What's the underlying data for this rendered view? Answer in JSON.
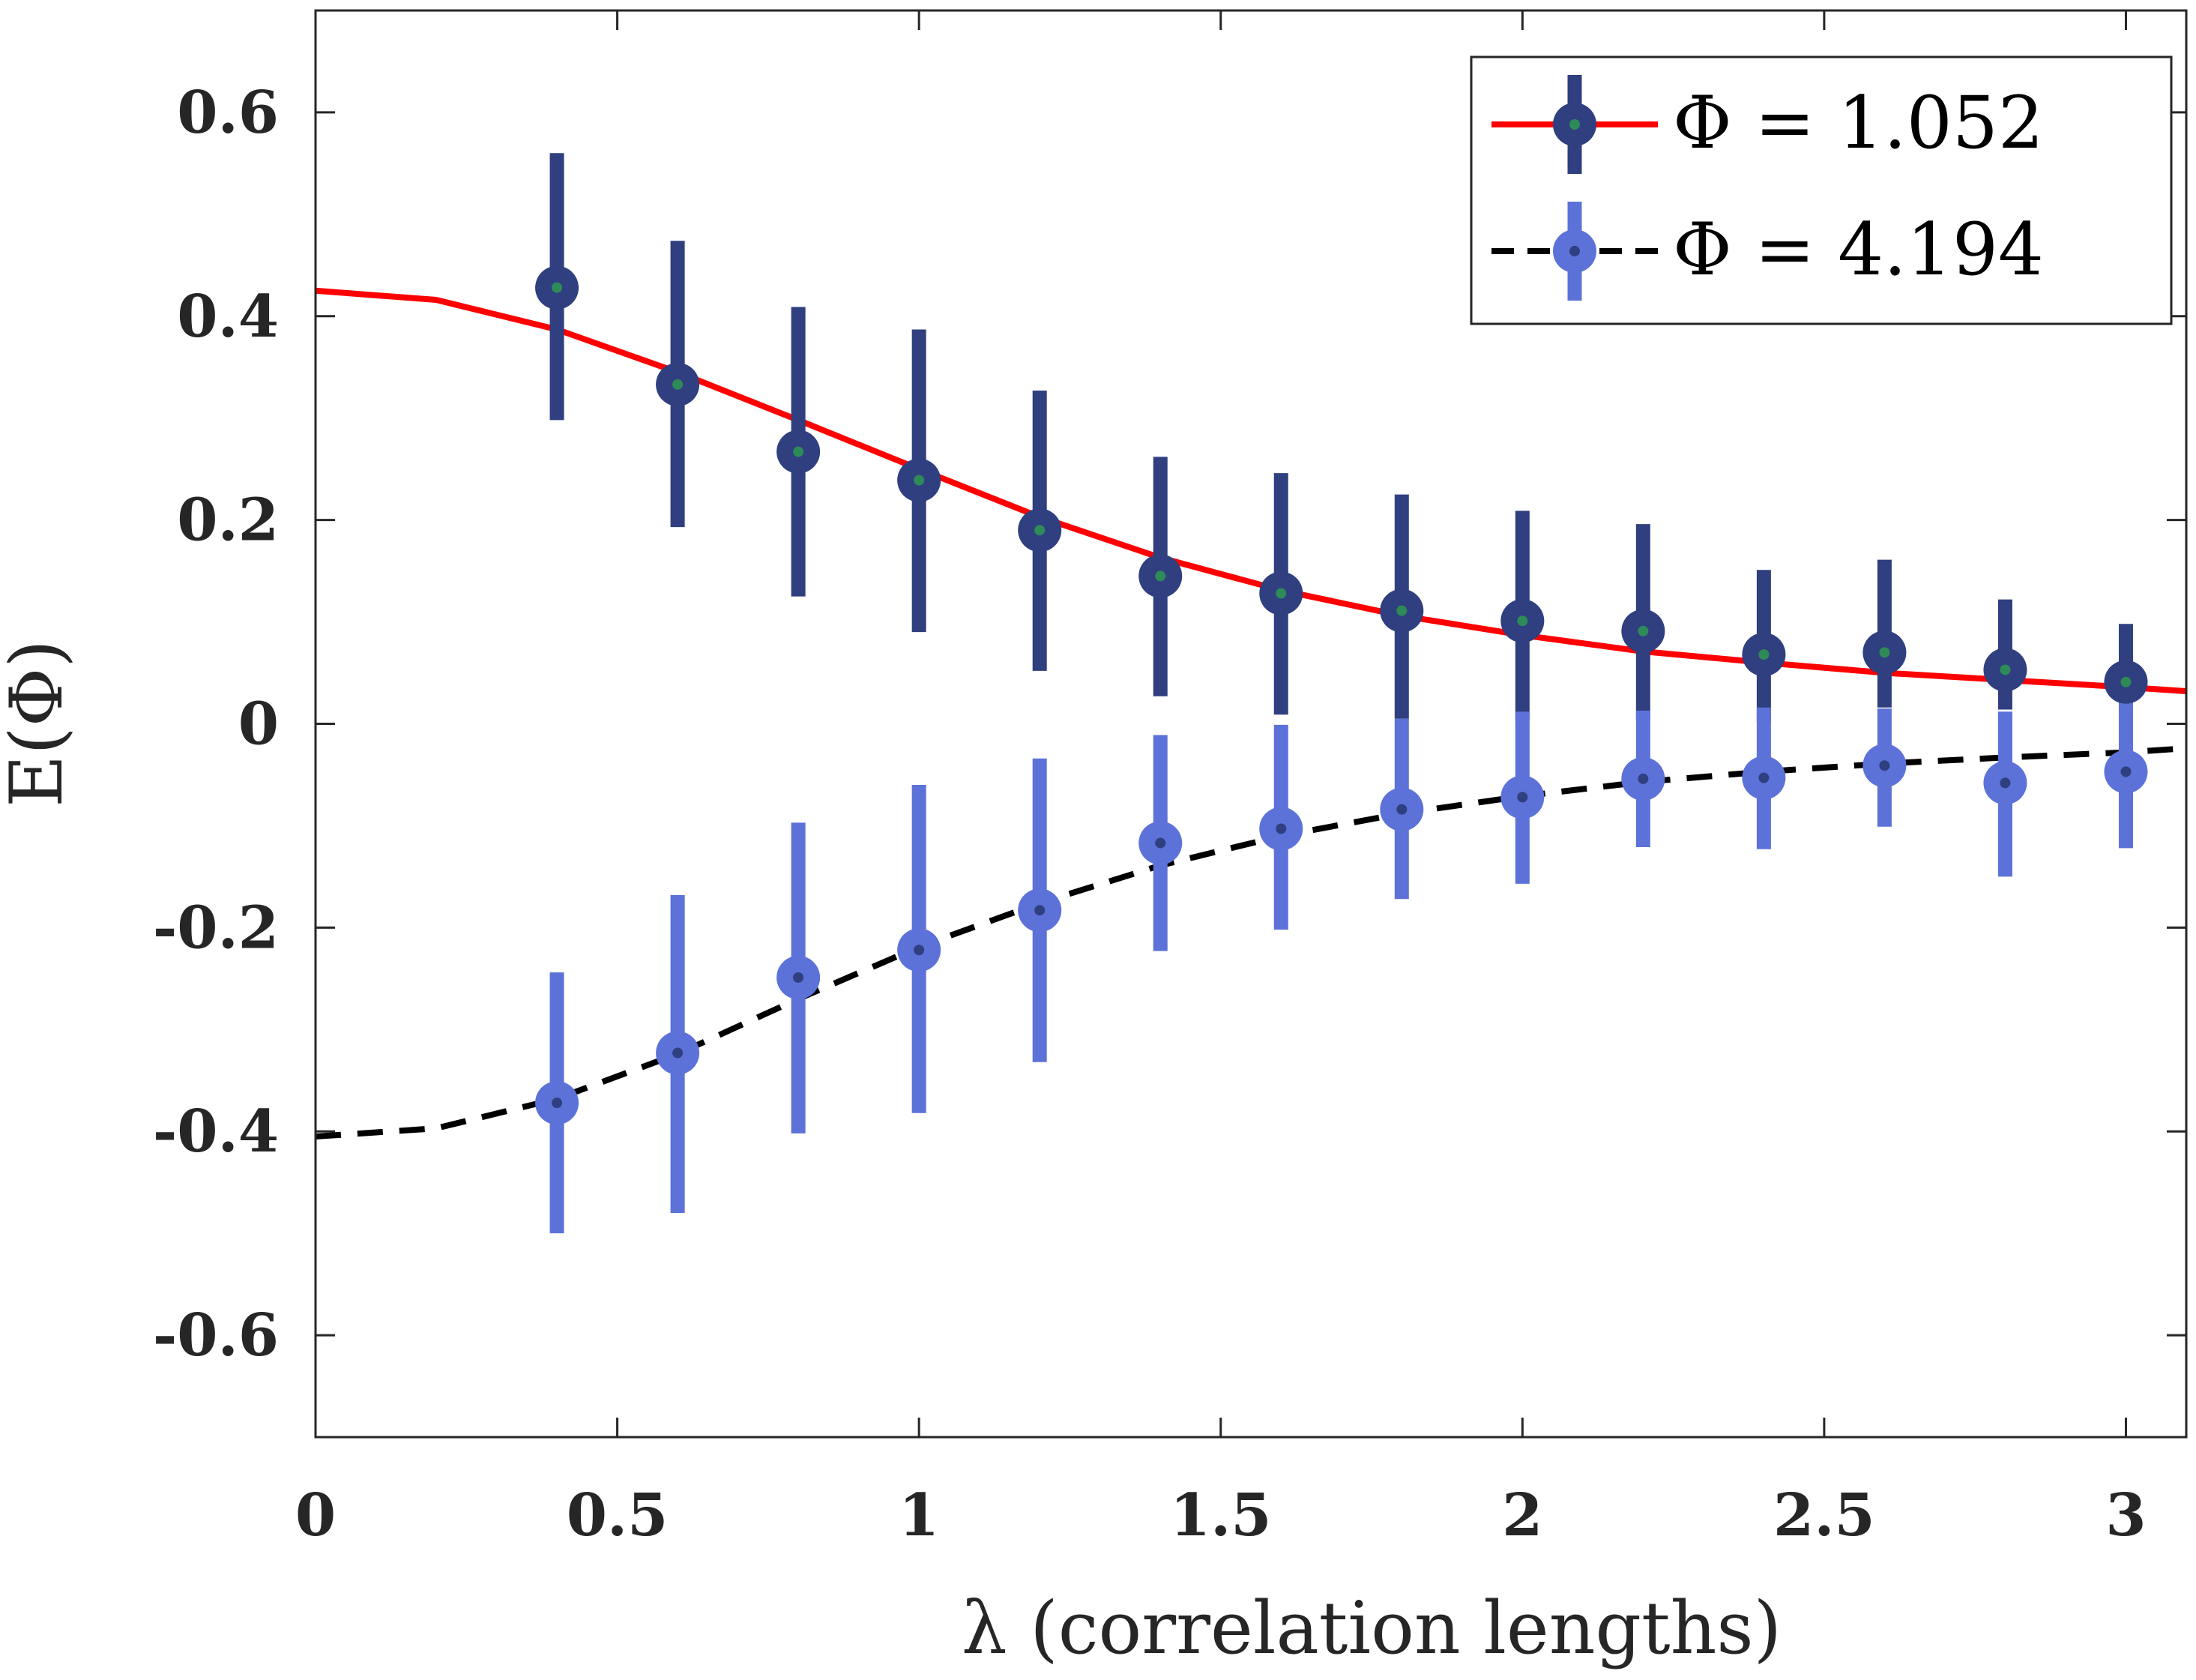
{
  "chart_data": {
    "type": "line",
    "title": "",
    "xlabel": "λ (correlation lengths)",
    "ylabel": "E(Φ)",
    "xlim": [
      0,
      3.1
    ],
    "ylim": [
      -0.7,
      0.7
    ],
    "xticks": [
      0,
      0.5,
      1,
      1.5,
      2,
      2.5,
      3
    ],
    "xtick_labels": [
      "0",
      "0.5",
      "1",
      "1.5",
      "2",
      "2.5",
      "3"
    ],
    "yticks": [
      -0.6,
      -0.4,
      -0.2,
      0,
      0.2,
      0.4,
      0.6
    ],
    "ytick_labels": [
      "-0.6",
      "-0.4",
      "-0.2",
      "0",
      "0.2",
      "0.4",
      "0.6"
    ],
    "grid": false,
    "legend_position": "top-right",
    "series": [
      {
        "name": "Φ = 1.052",
        "marker_color": "#2f3f7f",
        "center_color": "#2e8b57",
        "curve_color": "#ff0000",
        "curve_style": "solid",
        "x": [
          0.4,
          0.6,
          0.8,
          1.0,
          1.2,
          1.4,
          1.6,
          1.8,
          2.0,
          2.2,
          2.4,
          2.6,
          2.8,
          3.0
        ],
        "y": [
          0.428,
          0.333,
          0.267,
          0.239,
          0.19,
          0.145,
          0.128,
          0.111,
          0.101,
          0.091,
          0.068,
          0.07,
          0.053,
          0.041
        ],
        "err_low": [
          0.298,
          0.193,
          0.125,
          0.09,
          0.052,
          0.027,
          0.009,
          0.005,
          0.003,
          0.004,
          0.002,
          0.016,
          0.014,
          0.014
        ],
        "err_high": [
          0.56,
          0.474,
          0.409,
          0.387,
          0.327,
          0.262,
          0.246,
          0.225,
          0.209,
          0.196,
          0.151,
          0.161,
          0.122,
          0.098
        ],
        "fit_curve": {
          "x": [
            0,
            0.2,
            0.4,
            0.6,
            0.8,
            1.0,
            1.2,
            1.4,
            1.6,
            1.8,
            2.0,
            2.2,
            2.4,
            2.6,
            2.8,
            3.0,
            3.1
          ],
          "y": [
            0.425,
            0.416,
            0.387,
            0.345,
            0.298,
            0.25,
            0.203,
            0.163,
            0.131,
            0.106,
            0.087,
            0.071,
            0.06,
            0.05,
            0.043,
            0.036,
            0.032
          ]
        }
      },
      {
        "name": "Φ = 4.194",
        "marker_color": "#5c72d8",
        "center_color": "#2f3f7f",
        "curve_color": "#000000",
        "curve_style": "dashed",
        "x": [
          0.4,
          0.6,
          0.8,
          1.0,
          1.2,
          1.4,
          1.6,
          1.8,
          2.0,
          2.2,
          2.4,
          2.6,
          2.8,
          3.0
        ],
        "y": [
          -0.372,
          -0.323,
          -0.249,
          -0.222,
          -0.183,
          -0.117,
          -0.103,
          -0.084,
          -0.072,
          -0.054,
          -0.053,
          -0.041,
          -0.058,
          -0.047
        ],
        "err_low": [
          -0.5,
          -0.48,
          -0.402,
          -0.382,
          -0.332,
          -0.223,
          -0.202,
          -0.172,
          -0.157,
          -0.121,
          -0.123,
          -0.101,
          -0.15,
          -0.122
        ],
        "err_high": [
          -0.244,
          -0.168,
          -0.097,
          -0.06,
          -0.034,
          -0.011,
          -0.001,
          0.005,
          0.012,
          0.013,
          0.016,
          0.015,
          0.012,
          0.025
        ],
        "fit_curve": {
          "x": [
            0,
            0.2,
            0.4,
            0.6,
            0.8,
            1.0,
            1.2,
            1.4,
            1.6,
            1.8,
            2.0,
            2.2,
            2.4,
            2.6,
            2.8,
            3.0,
            3.1
          ],
          "y": [
            -0.405,
            -0.397,
            -0.368,
            -0.324,
            -0.27,
            -0.219,
            -0.176,
            -0.139,
            -0.11,
            -0.088,
            -0.071,
            -0.057,
            -0.047,
            -0.039,
            -0.033,
            -0.028,
            -0.024
          ]
        }
      }
    ]
  }
}
